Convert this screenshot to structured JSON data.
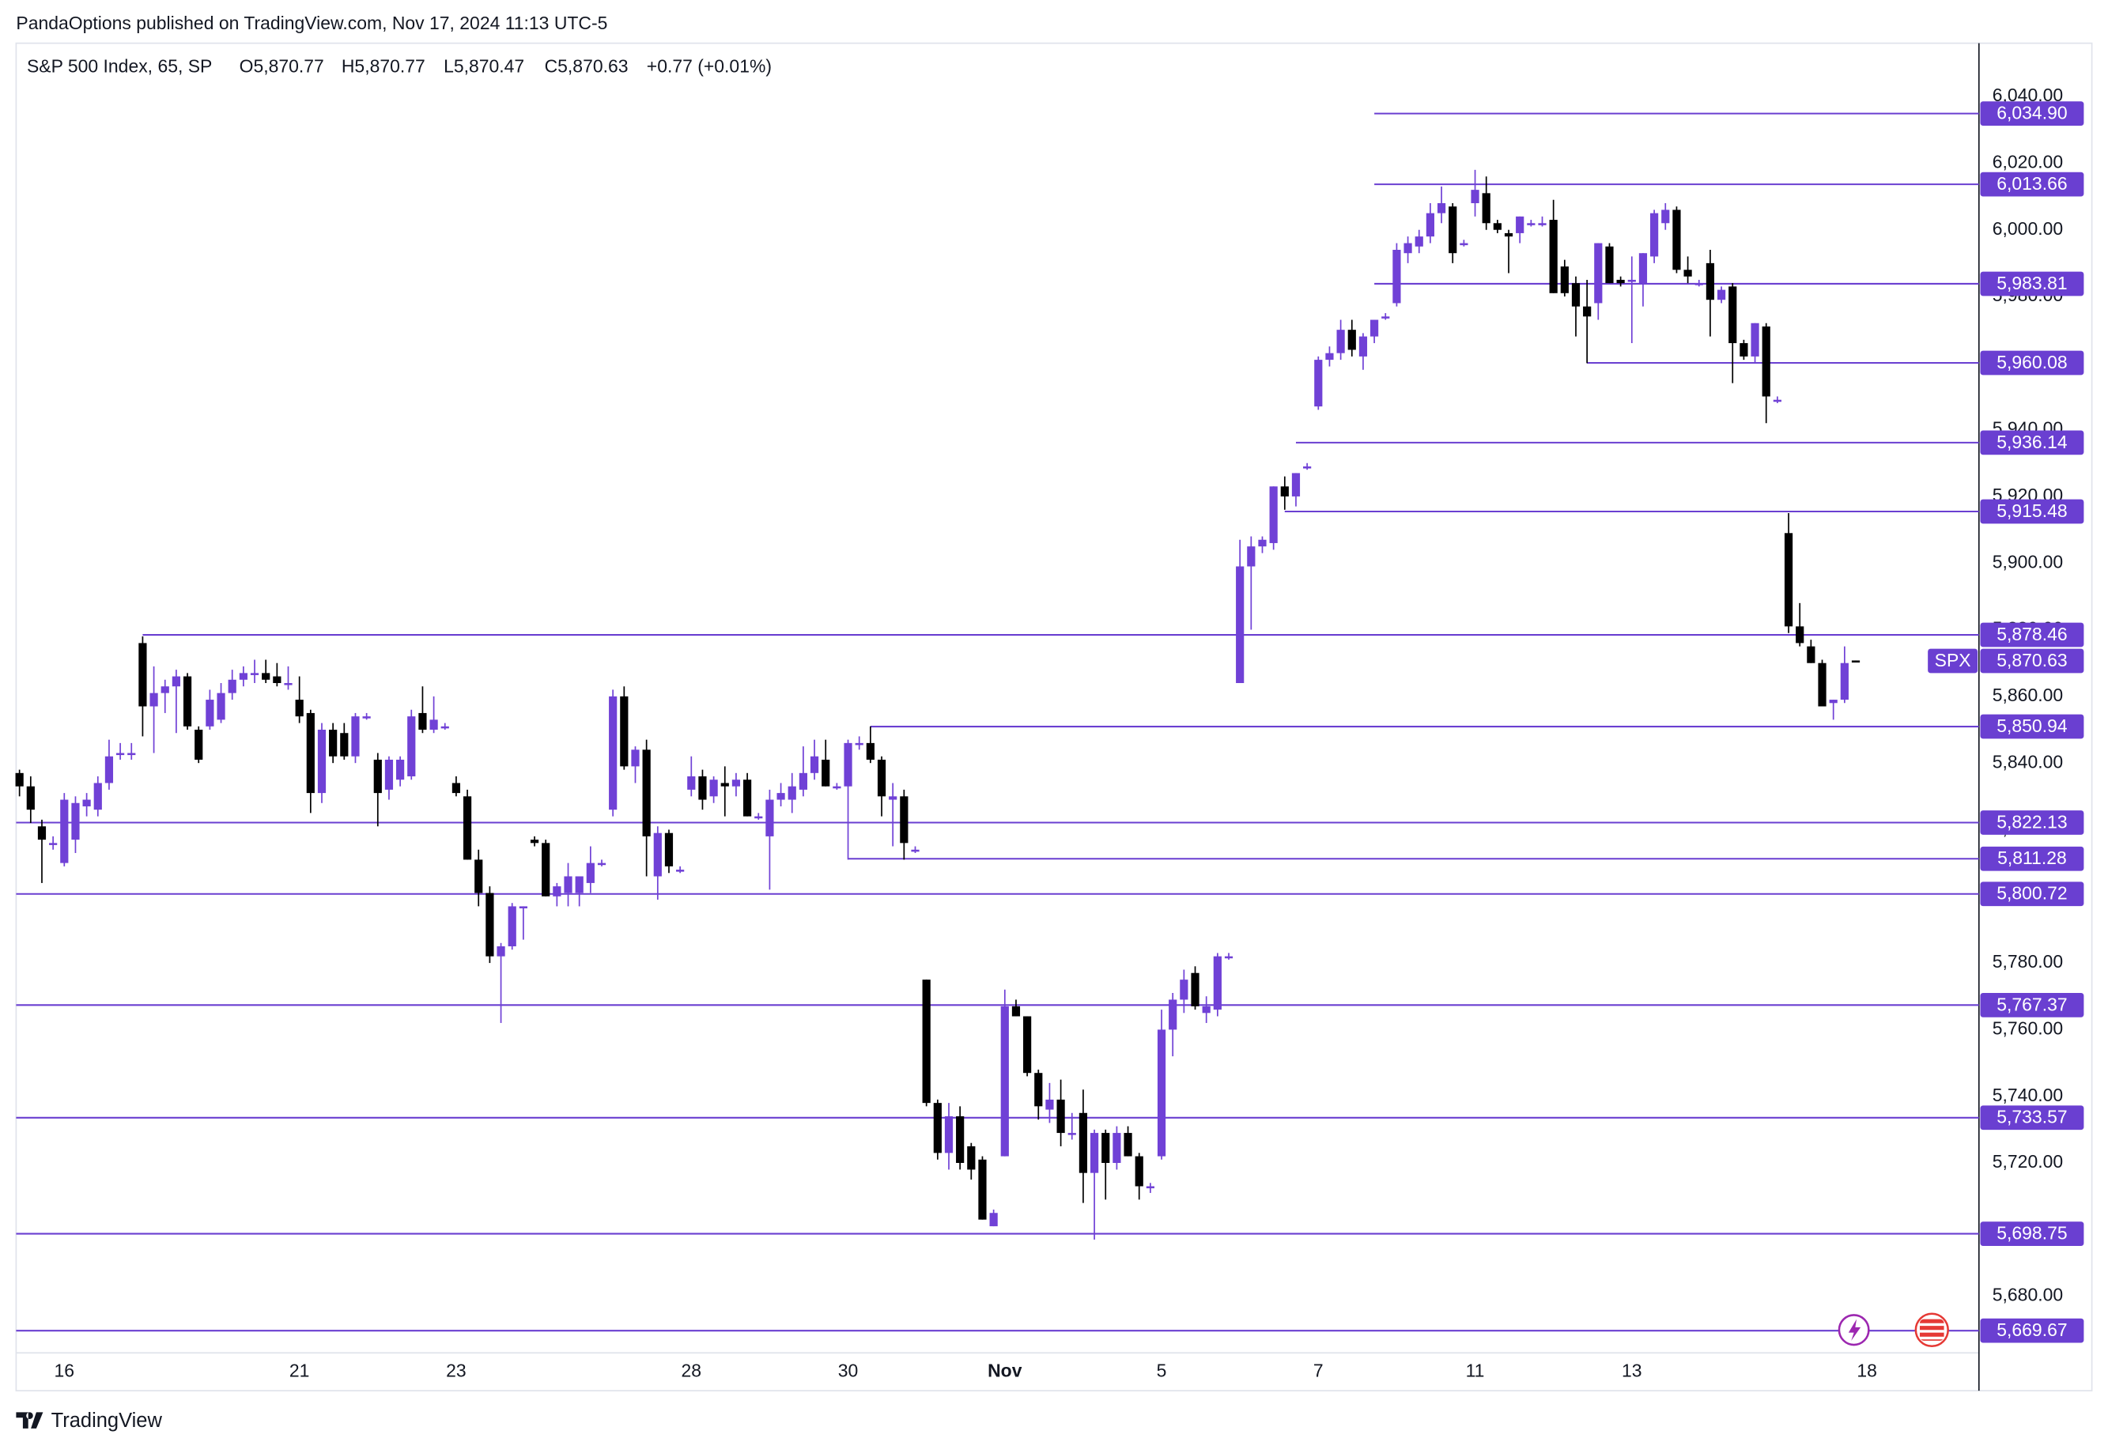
{
  "header": {
    "published": "PandaOptions published on TradingView.com, Nov 17, 2024 11:13 UTC-5"
  },
  "footer": {
    "brand": "TradingView"
  },
  "chart_data": {
    "type": "candlestick",
    "title": "S&P 500 Index, 65, SP",
    "header_values": [
      "O5,870.77",
      "H5,870.77",
      "L5,870.47",
      "C5,870.63",
      "+0.77 (+0.01%)"
    ],
    "up_color": "#7041d6",
    "down_color": "#000000",
    "level_color": "#6a3fd1",
    "grid": false,
    "candles": {
      "open": [
        5837,
        5833,
        5821,
        5816,
        5810,
        5817,
        5827,
        5826,
        5834,
        5843,
        5843,
        5876,
        5857,
        5861,
        5863,
        5866,
        5850,
        5851,
        5853,
        5861,
        5865,
        5867,
        5867,
        5866,
        5864,
        5859,
        5855,
        5831,
        5850,
        5849,
        5842,
        5854,
        5841,
        5832,
        5835,
        5836,
        5855,
        5850,
        5851,
        5834,
        5830,
        5811,
        5801,
        5782,
        5785,
        5797,
        5817,
        5816,
        5800,
        5801,
        5801,
        5804,
        5810,
        5826,
        5860,
        5839,
        5844,
        5806,
        5819,
        5808,
        5832,
        5836,
        5830,
        5834,
        5833,
        5835,
        5824,
        5818,
        5829,
        5829,
        5832,
        5837,
        5841,
        5833,
        5833,
        5846,
        5846,
        5841,
        5829,
        5830,
        5814,
        5775,
        5738,
        5723,
        5734,
        5725,
        5721,
        5701,
        5722,
        5767,
        5764,
        5747,
        5736,
        5739,
        5729,
        5735,
        5717,
        5729,
        5720,
        5729,
        5722,
        5713,
        5722,
        5760,
        5769,
        5777,
        5765,
        5766,
        5782,
        5864,
        5899,
        5905,
        5906,
        5923,
        5920,
        5929,
        5947,
        5961,
        5963,
        5970,
        5962,
        5968,
        5974,
        5978,
        5993,
        5995,
        5998,
        6005,
        6007,
        5996,
        6008,
        6011,
        6002,
        5999,
        5999,
        6002,
        6002,
        6003,
        5989,
        5984,
        5977,
        5978,
        5995,
        5985,
        5985,
        5984,
        5992,
        6002,
        6006,
        5988,
        5984,
        5990,
        5979,
        5983,
        5966,
        5962,
        5971,
        5949,
        5909,
        5881,
        5875,
        5870,
        5858,
        5859,
        5870.77
      ],
      "high": [
        5838,
        5836,
        5823,
        5818,
        5831,
        5830,
        5831,
        5836,
        5847,
        5846,
        5846,
        5878,
        5869,
        5865,
        5868,
        5867,
        5851,
        5862,
        5864,
        5868,
        5869,
        5871,
        5871,
        5870,
        5869,
        5866,
        5856,
        5852,
        5852,
        5852,
        5855,
        5855,
        5843,
        5842,
        5842,
        5856,
        5863,
        5860,
        5852,
        5836,
        5832,
        5814,
        5803,
        5786,
        5798,
        5797,
        5818,
        5817,
        5804,
        5810,
        5806,
        5815,
        5811,
        5862,
        5863,
        5845,
        5847,
        5821,
        5820,
        5809,
        5842,
        5838,
        5836,
        5839,
        5837,
        5837,
        5825,
        5832,
        5834,
        5837,
        5845,
        5847,
        5847,
        5834,
        5847,
        5848,
        5851,
        5842,
        5834,
        5832,
        5815,
        5775,
        5739,
        5738,
        5737,
        5726,
        5722,
        5706,
        5772,
        5769,
        5764,
        5748,
        5744,
        5745,
        5735,
        5742,
        5730,
        5730,
        5731,
        5731,
        5723,
        5714,
        5766,
        5771,
        5778,
        5779,
        5770,
        5783,
        5783,
        5907,
        5908,
        5908,
        5923,
        5926,
        5927,
        5930,
        5962,
        5965,
        5973,
        5973,
        5969,
        5973,
        5975,
        5996,
        5998,
        6000,
        6008,
        6013,
        6008,
        5997,
        6018,
        6016,
        6003,
        6000,
        6004,
        6003,
        6004,
        6009,
        5991,
        5986,
        5985,
        5996,
        5996,
        5986,
        5992,
        5993,
        6006,
        6008,
        6007,
        5992,
        5985,
        5994,
        5983,
        5984,
        5967,
        5972,
        5972,
        5950,
        5915,
        5888,
        5877,
        5871,
        5859,
        5875,
        5870.77
      ],
      "low": [
        5830,
        5822,
        5804,
        5814,
        5809,
        5813,
        5824,
        5824,
        5832,
        5841,
        5841,
        5848,
        5843,
        5855,
        5849,
        5850,
        5840,
        5850,
        5852,
        5859,
        5863,
        5864,
        5864,
        5863,
        5862,
        5852,
        5825,
        5828,
        5840,
        5841,
        5840,
        5853,
        5821,
        5829,
        5833,
        5835,
        5849,
        5849,
        5850,
        5830,
        5811,
        5797,
        5780,
        5762,
        5784,
        5787,
        5815,
        5800,
        5797,
        5797,
        5797,
        5801,
        5809,
        5824,
        5838,
        5834,
        5806,
        5799,
        5807,
        5807,
        5830,
        5826,
        5828,
        5824,
        5830,
        5824,
        5823,
        5802,
        5827,
        5825,
        5830,
        5835,
        5833,
        5832,
        5811,
        5844,
        5840,
        5824,
        5815,
        5811,
        5813,
        5737,
        5721,
        5718,
        5718,
        5715,
        5703,
        5701,
        5722,
        5764,
        5746,
        5733,
        5732,
        5725,
        5727,
        5708,
        5697,
        5709,
        5718,
        5722,
        5709,
        5711,
        5721,
        5752,
        5765,
        5766,
        5762,
        5764,
        5781,
        5864,
        5880,
        5903,
        5904,
        5916,
        5917,
        5928,
        5946,
        5959,
        5961,
        5962,
        5958,
        5966,
        5973,
        5977,
        5990,
        5993,
        5996,
        6002,
        5990,
        5995,
        6004,
        6000,
        5999,
        5987,
        5996,
        6001,
        6001,
        5981,
        5980,
        5968,
        5960,
        5973,
        5984,
        5983,
        5966,
        5977,
        5990,
        6000,
        5987,
        5984,
        5983,
        5968,
        5978,
        5954,
        5961,
        5960,
        5942,
        5948,
        5879,
        5875,
        5870,
        5857,
        5853,
        5858,
        5870.47
      ],
      "close": [
        5833,
        5826,
        5817,
        5816,
        5829,
        5828,
        5829,
        5834,
        5842,
        5843,
        5843,
        5857,
        5861,
        5863,
        5866,
        5851,
        5841,
        5859,
        5861,
        5865,
        5867,
        5867,
        5865,
        5864,
        5864,
        5854,
        5831,
        5850,
        5842,
        5842,
        5854,
        5854,
        5831,
        5841,
        5841,
        5854,
        5850,
        5853,
        5851,
        5831,
        5811,
        5801,
        5782,
        5785,
        5797,
        5797,
        5816,
        5800,
        5803,
        5806,
        5806,
        5810,
        5810,
        5860,
        5839,
        5844,
        5818,
        5819,
        5809,
        5808,
        5836,
        5829,
        5835,
        5833,
        5835,
        5824,
        5824,
        5829,
        5831,
        5833,
        5837,
        5842,
        5833,
        5833,
        5846,
        5846,
        5841,
        5830,
        5830,
        5816,
        5814,
        5738,
        5723,
        5734,
        5720,
        5718,
        5703,
        5705,
        5767,
        5764,
        5747,
        5737,
        5739,
        5729,
        5729,
        5717,
        5729,
        5720,
        5729,
        5722,
        5713,
        5713,
        5760,
        5769,
        5775,
        5767,
        5767,
        5782,
        5782,
        5899,
        5905,
        5907,
        5923,
        5920,
        5927,
        5929,
        5961,
        5963,
        5970,
        5964,
        5968,
        5973,
        5974,
        5994,
        5996,
        5998,
        6005,
        6008,
        5993,
        5996,
        6012,
        6002,
        6000,
        5998,
        6004,
        6002,
        6002,
        5981,
        5981,
        5977,
        5974,
        5996,
        5984,
        5984,
        5985,
        5993,
        6005,
        6006,
        5988,
        5986,
        5984,
        5979,
        5982,
        5966,
        5962,
        5972,
        5950,
        5949,
        5881,
        5876,
        5870,
        5857,
        5859,
        5870,
        5870.63
      ]
    },
    "levels": [
      {
        "value": 6034.9,
        "label": "6,034.90",
        "start": 121
      },
      {
        "value": 6013.66,
        "label": "6,013.66",
        "start": 121
      },
      {
        "value": 5983.81,
        "label": "5,983.81",
        "start": 121
      },
      {
        "value": 5960.08,
        "label": "5,960.08",
        "start": 140
      },
      {
        "value": 5936.14,
        "label": "5,936.14",
        "start": 114
      },
      {
        "value": 5915.48,
        "label": "5,915.48",
        "start": 113
      },
      {
        "value": 5878.46,
        "label": "5,878.46",
        "start": 11
      },
      {
        "value": 5850.94,
        "label": "5,850.94",
        "start": 76
      },
      {
        "value": 5822.13,
        "label": "5,822.13"
      },
      {
        "value": 5811.28,
        "label": "5,811.28",
        "start": 74
      },
      {
        "value": 5800.72,
        "label": "5,800.72"
      },
      {
        "value": 5767.37,
        "label": "5,767.37"
      },
      {
        "value": 5733.57,
        "label": "5,733.57"
      },
      {
        "value": 5698.75,
        "label": "5,698.75"
      },
      {
        "value": 5669.67,
        "label": "5,669.67"
      }
    ],
    "last_price": {
      "symbol": "SPX",
      "value": 5870.63,
      "label": "5,870.63"
    },
    "xlim": [
      -0.3,
      175
    ],
    "xticks": [
      {
        "value": 4,
        "label": "16"
      },
      {
        "value": 25,
        "label": "21"
      },
      {
        "value": 39,
        "label": "23"
      },
      {
        "value": 60,
        "label": "28"
      },
      {
        "value": 74,
        "label": "30"
      },
      {
        "value": 88,
        "label": "Nov"
      },
      {
        "value": 102,
        "label": "5"
      },
      {
        "value": 116,
        "label": "7"
      },
      {
        "value": 130,
        "label": "11"
      },
      {
        "value": 144,
        "label": "13"
      },
      {
        "value": 165,
        "label": "18"
      }
    ],
    "ylim": [
      5663,
      6056
    ],
    "yticks": [
      {
        "value": 5680,
        "label": "5,680.00"
      },
      {
        "value": 5700,
        "label": "5,700.00"
      },
      {
        "value": 5720,
        "label": "5,720.00"
      },
      {
        "value": 5740,
        "label": "5,740.00"
      },
      {
        "value": 5760,
        "label": "5,760.00"
      },
      {
        "value": 5780,
        "label": "5,780.00"
      },
      {
        "value": 5800,
        "label": "5,800.00"
      },
      {
        "value": 5820,
        "label": "5,820.00"
      },
      {
        "value": 5840,
        "label": "5,840.00"
      },
      {
        "value": 5860,
        "label": "5,860.00"
      },
      {
        "value": 5880,
        "label": "5,880.00"
      },
      {
        "value": 5900,
        "label": "5,900.00"
      },
      {
        "value": 5920,
        "label": "5,920.00"
      },
      {
        "value": 5940,
        "label": "5,940.00"
      },
      {
        "value": 5960,
        "label": "5,960.00"
      },
      {
        "value": 5980,
        "label": "5,980.00"
      },
      {
        "value": 6000,
        "label": "6,000.00"
      },
      {
        "value": 6020,
        "label": "6,020.00"
      },
      {
        "value": 6040,
        "label": "6,040.00"
      }
    ]
  }
}
